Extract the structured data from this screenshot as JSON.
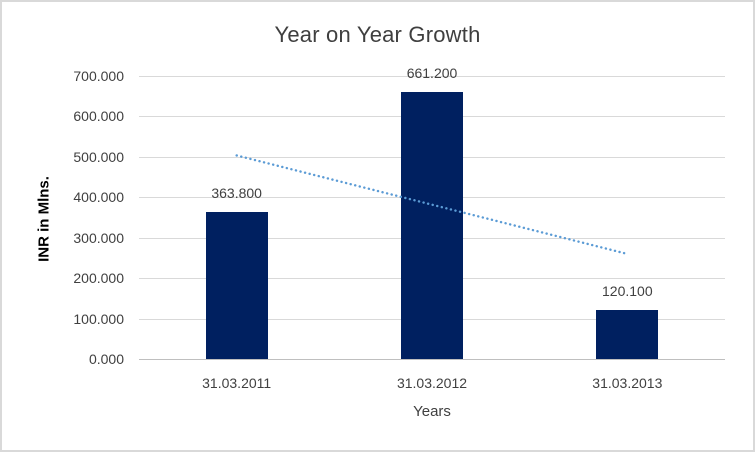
{
  "window": {
    "background": "#ffffff",
    "border_color": "#d9d9d9"
  },
  "chart_data": {
    "type": "bar",
    "title": "Year on Year Growth",
    "xlabel": "Years",
    "ylabel": "INR in Mlns.",
    "categories": [
      "31.03.2011",
      "31.03.2012",
      "31.03.2013"
    ],
    "values": [
      363.8,
      661.2,
      120.1
    ],
    "value_labels": [
      "363.800",
      "661.200",
      "120.100"
    ],
    "yticks": [
      0,
      100,
      200,
      300,
      400,
      500,
      600,
      700
    ],
    "ytick_labels": [
      "0.000",
      "100.000",
      "200.000",
      "300.000",
      "400.000",
      "500.000",
      "600.000",
      "700.000"
    ],
    "ylim": [
      0,
      700
    ],
    "grid": true,
    "legend_position": "none",
    "trendline": {
      "type": "linear",
      "style": "dotted",
      "start_value": 503.5,
      "end_value": 259.9,
      "color": "#5b9bd5"
    },
    "colors": {
      "bar": "#002060",
      "gridline": "#d9d9d9",
      "axis_line": "#bfbfbf",
      "text": "#404040",
      "title": "#3f3f3f",
      "axis_title": "#000000"
    }
  }
}
